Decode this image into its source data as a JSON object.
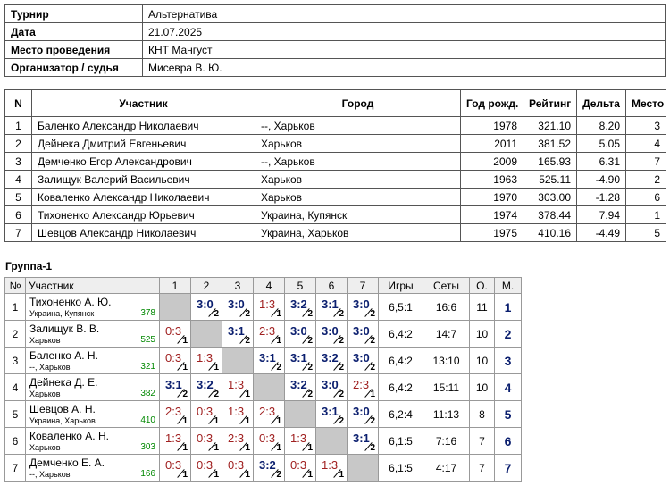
{
  "info": [
    [
      "Турнир",
      "Альтернатива"
    ],
    [
      "Дата",
      "21.07.2025"
    ],
    [
      "Место проведения",
      "КНТ Мангуст"
    ],
    [
      "Организатор / судья",
      "Мисевра В. Ю."
    ]
  ],
  "participants": {
    "headers": [
      "N",
      "Участник",
      "Город",
      "Год рожд.",
      "Рейтинг",
      "Дельта",
      "Место"
    ],
    "rows": [
      [
        "1",
        "Баленко Александр Николаевич",
        "--, Харьков",
        "1978",
        "321.10",
        "8.20",
        "3"
      ],
      [
        "2",
        "Дейнека Дмитрий Евгеньевич",
        "Харьков",
        "2011",
        "381.52",
        "5.05",
        "4"
      ],
      [
        "3",
        "Демченко Егор Александрович",
        "--, Харьков",
        "2009",
        "165.93",
        "6.31",
        "7"
      ],
      [
        "4",
        "Залищук Валерий Васильевич",
        "Харьков",
        "1963",
        "525.11",
        "-4.90",
        "2"
      ],
      [
        "5",
        "Коваленко Александр Николаевич",
        "Харьков",
        "1970",
        "303.00",
        "-1.28",
        "6"
      ],
      [
        "6",
        "Тихоненко Александр Юрьевич",
        "Украина, Купянск",
        "1974",
        "378.44",
        "7.94",
        "1"
      ],
      [
        "7",
        "Шевцов Александр Николаевич",
        "Украина, Харьков",
        "1975",
        "410.16",
        "-4.49",
        "5"
      ]
    ]
  },
  "group": {
    "title": "Группа-1",
    "headers": [
      "№",
      "Участник",
      "1",
      "2",
      "3",
      "4",
      "5",
      "6",
      "7",
      "Игры",
      "Сеты",
      "О.",
      "М."
    ],
    "rows": [
      {
        "n": "1",
        "name": "Тихоненко А. Ю.",
        "city": "Украина, Купянск",
        "rating": "378",
        "results": [
          null,
          {
            "score": "3:0",
            "pts": 2
          },
          {
            "score": "3:0",
            "pts": 2
          },
          {
            "score": "1:3",
            "pts": 1
          },
          {
            "score": "3:2",
            "pts": 2
          },
          {
            "score": "3:1",
            "pts": 2
          },
          {
            "score": "3:0",
            "pts": 2
          }
        ],
        "games": "6,5:1",
        "sets": "16:6",
        "points": "11",
        "place": "1"
      },
      {
        "n": "2",
        "name": "Залищук В. В.",
        "city": "Харьков",
        "rating": "525",
        "results": [
          {
            "score": "0:3",
            "pts": 1
          },
          null,
          {
            "score": "3:1",
            "pts": 2
          },
          {
            "score": "2:3",
            "pts": 1
          },
          {
            "score": "3:0",
            "pts": 2
          },
          {
            "score": "3:0",
            "pts": 2
          },
          {
            "score": "3:0",
            "pts": 2
          }
        ],
        "games": "6,4:2",
        "sets": "14:7",
        "points": "10",
        "place": "2"
      },
      {
        "n": "3",
        "name": "Баленко А. Н.",
        "city": "--, Харьков",
        "rating": "321",
        "results": [
          {
            "score": "0:3",
            "pts": 1
          },
          {
            "score": "1:3",
            "pts": 1
          },
          null,
          {
            "score": "3:1",
            "pts": 2
          },
          {
            "score": "3:1",
            "pts": 2
          },
          {
            "score": "3:2",
            "pts": 2
          },
          {
            "score": "3:0",
            "pts": 2
          }
        ],
        "games": "6,4:2",
        "sets": "13:10",
        "points": "10",
        "place": "3"
      },
      {
        "n": "4",
        "name": "Дейнека Д. Е.",
        "city": "Харьков",
        "rating": "382",
        "results": [
          {
            "score": "3:1",
            "pts": 2
          },
          {
            "score": "3:2",
            "pts": 2
          },
          {
            "score": "1:3",
            "pts": 1
          },
          null,
          {
            "score": "3:2",
            "pts": 2
          },
          {
            "score": "3:0",
            "pts": 2
          },
          {
            "score": "2:3",
            "pts": 1
          }
        ],
        "games": "6,4:2",
        "sets": "15:11",
        "points": "10",
        "place": "4"
      },
      {
        "n": "5",
        "name": "Шевцов А. Н.",
        "city": "Украина, Харьков",
        "rating": "410",
        "results": [
          {
            "score": "2:3",
            "pts": 1
          },
          {
            "score": "0:3",
            "pts": 1
          },
          {
            "score": "1:3",
            "pts": 1
          },
          {
            "score": "2:3",
            "pts": 1
          },
          null,
          {
            "score": "3:1",
            "pts": 2
          },
          {
            "score": "3:0",
            "pts": 2
          }
        ],
        "games": "6,2:4",
        "sets": "11:13",
        "points": "8",
        "place": "5"
      },
      {
        "n": "6",
        "name": "Коваленко А. Н.",
        "city": "Харьков",
        "rating": "303",
        "results": [
          {
            "score": "1:3",
            "pts": 1
          },
          {
            "score": "0:3",
            "pts": 1
          },
          {
            "score": "2:3",
            "pts": 1
          },
          {
            "score": "0:3",
            "pts": 1
          },
          {
            "score": "1:3",
            "pts": 1
          },
          null,
          {
            "score": "3:1",
            "pts": 2
          }
        ],
        "games": "6,1:5",
        "sets": "7:16",
        "points": "7",
        "place": "6"
      },
      {
        "n": "7",
        "name": "Демченко Е. А.",
        "city": "--, Харьков",
        "rating": "166",
        "results": [
          {
            "score": "0:3",
            "pts": 1
          },
          {
            "score": "0:3",
            "pts": 1
          },
          {
            "score": "0:3",
            "pts": 1
          },
          {
            "score": "3:2",
            "pts": 2
          },
          {
            "score": "0:3",
            "pts": 1
          },
          {
            "score": "1:3",
            "pts": 1
          },
          null
        ],
        "games": "6,1:5",
        "sets": "4:17",
        "points": "7",
        "place": "7"
      }
    ]
  }
}
